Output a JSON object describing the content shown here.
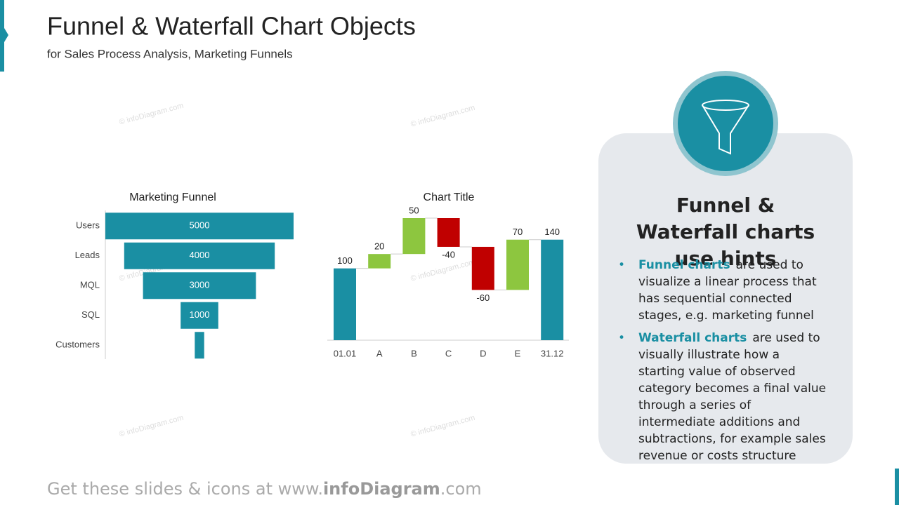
{
  "title": "Funnel & Waterfall Chart Objects",
  "subtitle": "for Sales Process Analysis, Marketing Funnels",
  "watermark": "© infoDiagram.com",
  "chart_data": [
    {
      "type": "funnel",
      "title": "Marketing Funnel",
      "categories": [
        "Users",
        "Leads",
        "MQL",
        "SQL",
        "Customers"
      ],
      "values": [
        5000,
        4000,
        3000,
        1000,
        250
      ],
      "color": "#1a8fa3"
    },
    {
      "type": "waterfall",
      "title": "Chart Title",
      "categories": [
        "01.01",
        "A",
        "B",
        "C",
        "D",
        "E",
        "31.12"
      ],
      "values": [
        100,
        20,
        50,
        -40,
        -60,
        70,
        140
      ],
      "colors": {
        "total": "#1a8fa3",
        "increase": "#8dc63f",
        "decrease": "#c00000"
      }
    }
  ],
  "hints": {
    "title": "Funnel & Waterfall charts use hints",
    "items": [
      {
        "lead": "Funnel charts",
        "text": "are used to visualize a linear process that has sequential connected stages, e.g. marketing funnel"
      },
      {
        "lead": "Waterfall charts",
        "text": "are used to visually illustrate how a starting value of observed category becomes a final value through a series of intermediate additions and subtractions, for example sales revenue or costs structure"
      }
    ]
  },
  "footer": {
    "prefix": "Get these slides & icons at www.",
    "brand": "infoDiagram",
    "suffix": ".com"
  }
}
